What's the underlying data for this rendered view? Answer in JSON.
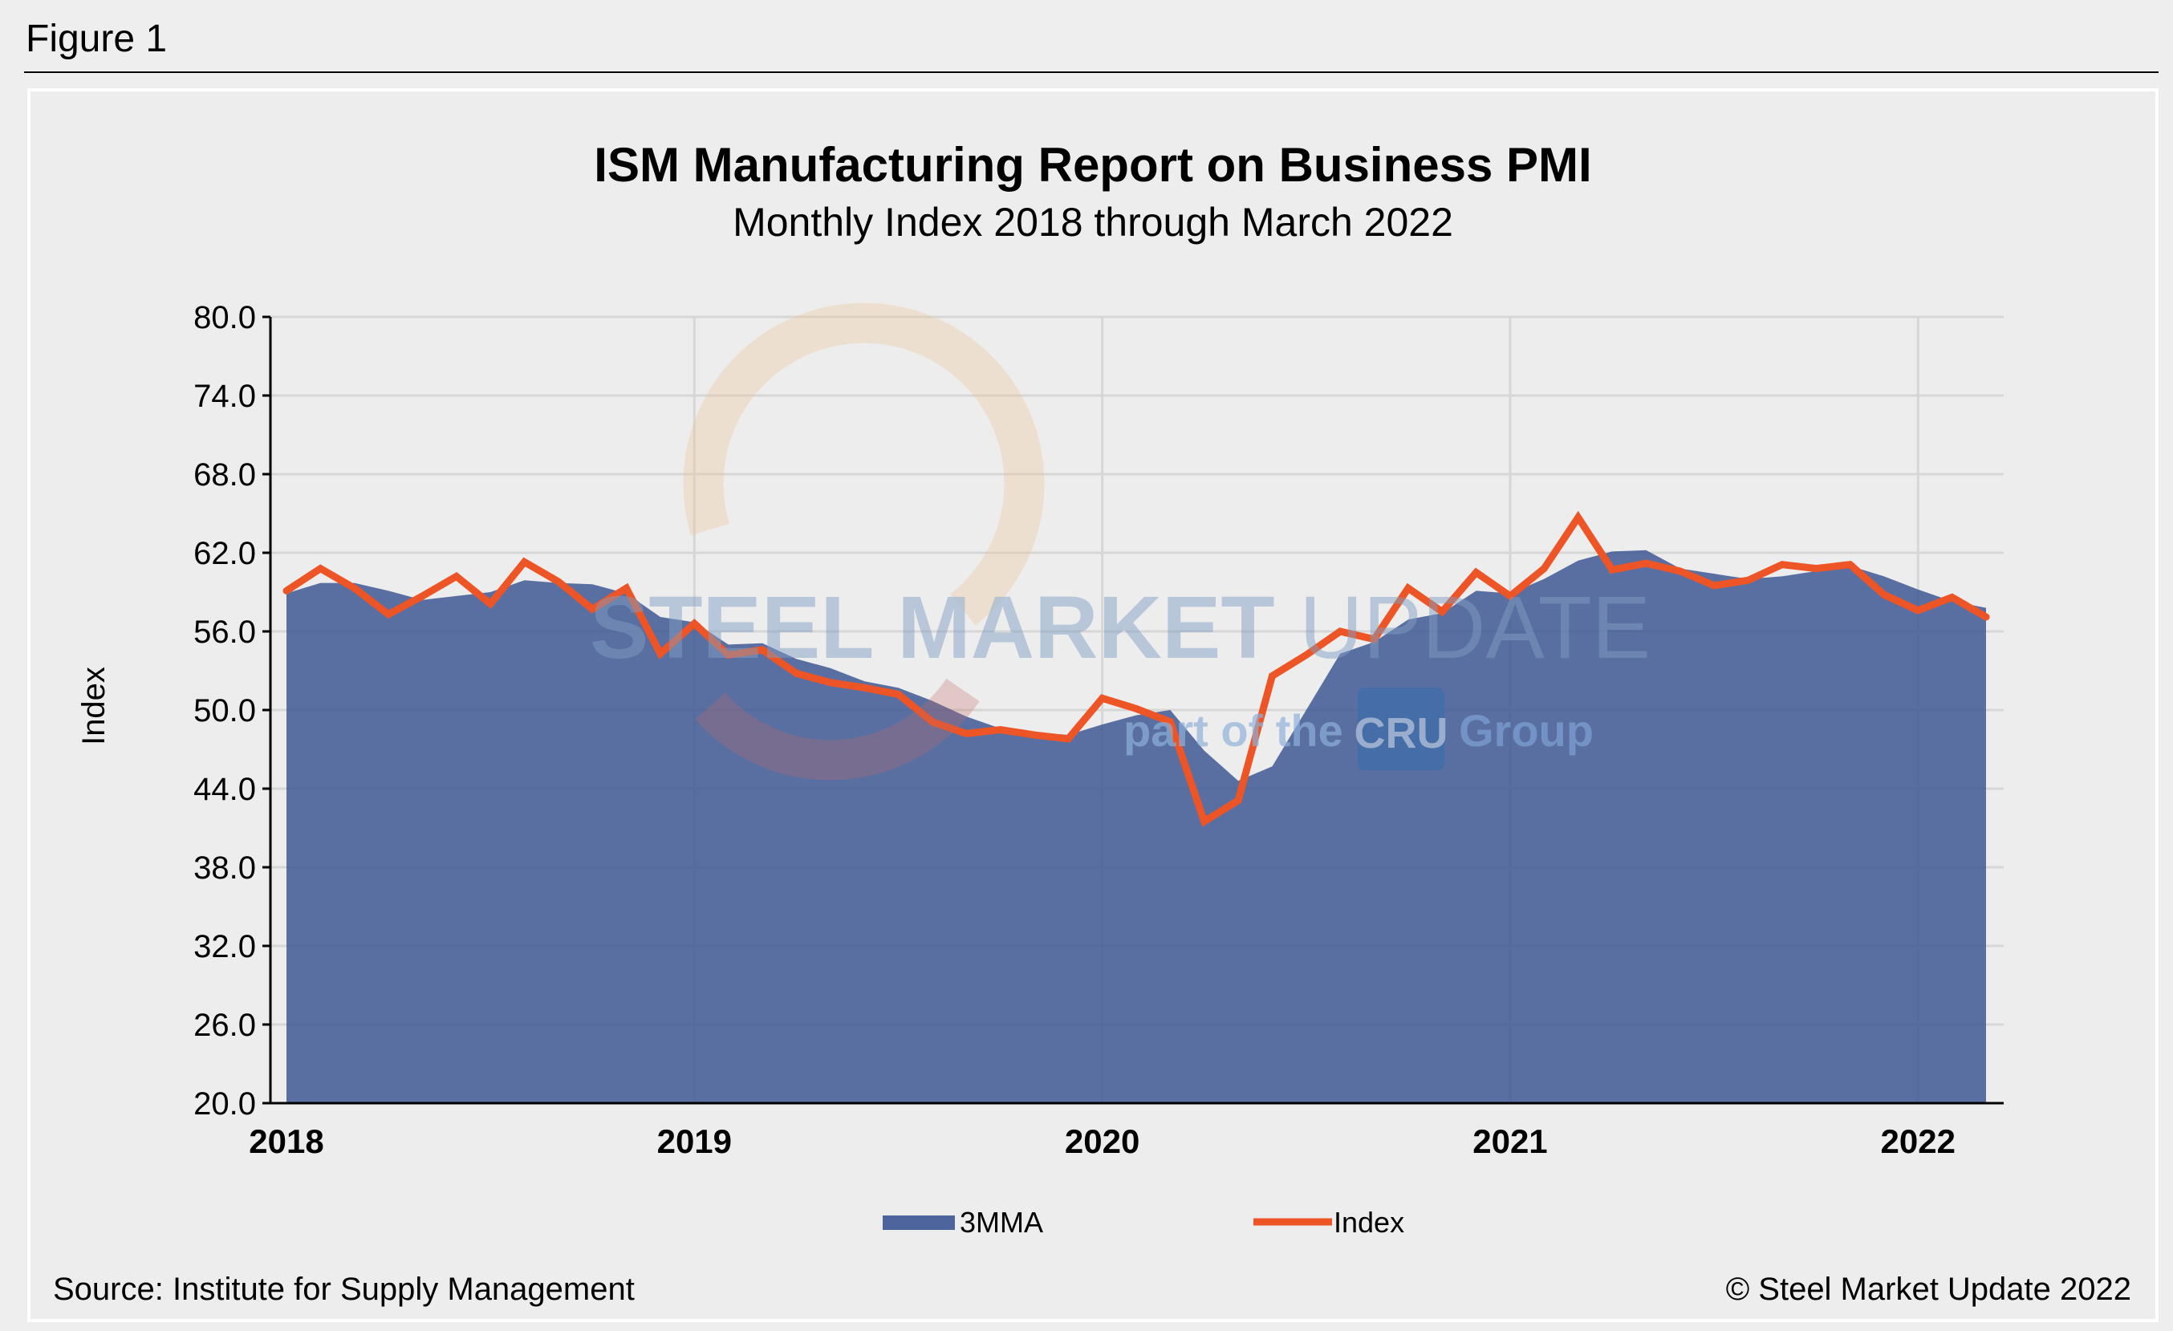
{
  "figure_label": "Figure 1",
  "source": "Source: Institute for Supply Management",
  "copyright": "© Steel Market Update 2022",
  "watermark": {
    "line1a": "STEEL MARKET",
    "line1b": "UPDATE",
    "line2a": "part of the",
    "line2b": "CRU",
    "line2c": "Group"
  },
  "colors": {
    "area": "#3f5893",
    "line": "#ee5526",
    "grid": "#d6d6d6",
    "background": "#ededed"
  },
  "chart_data": {
    "type": "area+line",
    "title": "ISM Manufacturing Report on Business PMI",
    "subtitle": "Monthly Index 2018 through March 2022",
    "ylabel": "Index",
    "xlabel": "",
    "ylim": [
      20,
      80
    ],
    "yticks": [
      "20.0",
      "26.0",
      "32.0",
      "38.0",
      "44.0",
      "50.0",
      "56.0",
      "62.0",
      "68.0",
      "74.0",
      "80.0"
    ],
    "xticks": [
      "2018",
      "2019",
      "2020",
      "2021",
      "2022"
    ],
    "grid": true,
    "legend_position": "bottom",
    "x_start": "2018-01",
    "x_end": "2022-03",
    "frequency": "monthly",
    "series": [
      {
        "name": "3MMA",
        "type": "area",
        "values": [
          58.9,
          59.7,
          59.7,
          59.1,
          58.4,
          58.7,
          59.0,
          59.9,
          59.7,
          59.6,
          58.9,
          57.1,
          56.7,
          55.0,
          55.1,
          53.9,
          53.2,
          52.2,
          51.7,
          50.7,
          49.5,
          48.6,
          48.3,
          48.1,
          48.9,
          49.6,
          50.0,
          46.9,
          44.6,
          45.7,
          50.0,
          54.3,
          55.2,
          56.9,
          57.4,
          59.1,
          58.9,
          60.0,
          61.4,
          62.1,
          62.2,
          60.8,
          60.4,
          60.0,
          60.2,
          60.6,
          61.0,
          60.2,
          59.2,
          58.3,
          57.8
        ]
      },
      {
        "name": "Index",
        "type": "line",
        "values": [
          59.1,
          60.8,
          59.3,
          57.3,
          58.7,
          60.2,
          58.1,
          61.3,
          59.8,
          57.7,
          59.3,
          54.3,
          56.6,
          54.2,
          54.6,
          52.8,
          52.1,
          51.7,
          51.2,
          49.1,
          48.2,
          48.5,
          48.1,
          47.8,
          50.9,
          50.1,
          49.1,
          41.5,
          43.1,
          52.6,
          54.2,
          56.0,
          55.4,
          59.3,
          57.5,
          60.5,
          58.7,
          60.8,
          64.7,
          60.7,
          61.2,
          60.6,
          59.5,
          59.9,
          61.1,
          60.8,
          61.1,
          58.8,
          57.6,
          58.6,
          57.1
        ]
      }
    ]
  }
}
